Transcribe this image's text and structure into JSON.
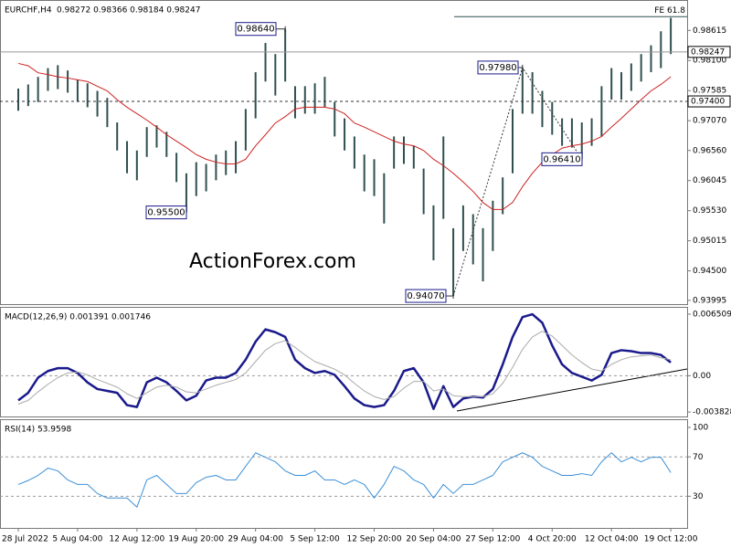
{
  "chart_data": [
    {
      "type": "ohlc",
      "title": "EURCHF,H4",
      "ohlc_text": "0.98272 0.98366 0.98184 0.98247",
      "watermark": "ActionForex.com",
      "color": "#2f4f4f",
      "high": [
        0.9762,
        0.9769,
        0.9782,
        0.9797,
        0.9802,
        0.9793,
        0.9777,
        0.9771,
        0.9758,
        0.9746,
        0.9704,
        0.9672,
        0.9656,
        0.9696,
        0.9699,
        0.9688,
        0.9652,
        0.9617,
        0.9636,
        0.9633,
        0.9649,
        0.9656,
        0.9672,
        0.9727,
        0.979,
        0.984,
        0.9821,
        0.9864,
        0.9766,
        0.9766,
        0.9771,
        0.9782,
        0.9739,
        0.9711,
        0.968,
        0.9649,
        0.9641,
        0.9617,
        0.968,
        0.968,
        0.9664,
        0.9625,
        0.9562,
        0.968,
        0.9523,
        0.9562,
        0.9547,
        0.9523,
        0.957,
        0.961,
        0.9727,
        0.9798,
        0.979,
        0.9758,
        0.9739,
        0.9711,
        0.9711,
        0.9704,
        0.9711,
        0.9766,
        0.9797,
        0.979,
        0.9805,
        0.9821,
        0.9836,
        0.986,
        0.9883
      ],
      "low": [
        0.9724,
        0.9732,
        0.9739,
        0.9758,
        0.9761,
        0.9755,
        0.9739,
        0.973,
        0.9714,
        0.9696,
        0.9656,
        0.9617,
        0.9605,
        0.9645,
        0.9661,
        0.9645,
        0.9602,
        0.955,
        0.9578,
        0.9586,
        0.9605,
        0.9614,
        0.9617,
        0.9656,
        0.9711,
        0.9774,
        0.975,
        0.9774,
        0.9711,
        0.9719,
        0.9719,
        0.973,
        0.968,
        0.9656,
        0.9625,
        0.9586,
        0.9578,
        0.9531,
        0.9625,
        0.9633,
        0.9625,
        0.9547,
        0.9468,
        0.9539,
        0.9407,
        0.9484,
        0.9461,
        0.9432,
        0.9484,
        0.9547,
        0.9617,
        0.9719,
        0.9719,
        0.9696,
        0.9683,
        0.9664,
        0.9661,
        0.9641,
        0.9664,
        0.968,
        0.9743,
        0.9743,
        0.9758,
        0.9774,
        0.979,
        0.9797,
        0.9821
      ],
      "ma": {
        "color": "#cc2222",
        "values": [
          0.9805,
          0.9801,
          0.9789,
          0.9786,
          0.9782,
          0.978,
          0.9777,
          0.9774,
          0.9766,
          0.9758,
          0.9743,
          0.973,
          0.9719,
          0.9708,
          0.9696,
          0.9683,
          0.9672,
          0.9661,
          0.9649,
          0.9641,
          0.9636,
          0.9633,
          0.9633,
          0.9641,
          0.9664,
          0.9683,
          0.9703,
          0.9714,
          0.9727,
          0.973,
          0.973,
          0.973,
          0.9727,
          0.9719,
          0.9703,
          0.9696,
          0.9688,
          0.968,
          0.9672,
          0.9667,
          0.9664,
          0.9656,
          0.9641,
          0.963,
          0.9617,
          0.9602,
          0.9586,
          0.9567,
          0.9555,
          0.9555,
          0.9567,
          0.9594,
          0.9617,
          0.9636,
          0.9649,
          0.966,
          0.9664,
          0.9667,
          0.9672,
          0.968,
          0.9696,
          0.9711,
          0.9727,
          0.9743,
          0.9758,
          0.9769,
          0.9782
        ]
      },
      "ylim": [
        0.9393,
        0.9912
      ],
      "yticks": [
        0.98615,
        {
          "value": 0.981,
          "label": "0.98100"
        },
        0.97585,
        {
          "value": 0.9707,
          "label": "0.97070"
        },
        {
          "value": 0.9656,
          "label": "0.96560"
        },
        0.96045,
        {
          "value": 0.9553,
          "label": "0.95530"
        },
        0.95015,
        {
          "value": 0.945,
          "label": "0.94500"
        },
        0.93995
      ],
      "levels": [
        {
          "value": 0.98247,
          "style": "solid"
        },
        {
          "value": 0.974,
          "label": "0.97400",
          "style": "dashed"
        }
      ],
      "fe": {
        "label": "FE 61.8",
        "value": 0.9885
      },
      "annotations": [
        {
          "value": 0.9864,
          "label": "0.98640"
        },
        {
          "value": 0.955,
          "label": "0.95500"
        },
        {
          "value": 0.9407,
          "label": "0.94070"
        },
        {
          "value": 0.9798,
          "label": "0.97980"
        },
        {
          "value": 0.9641,
          "label": "0.96410"
        }
      ]
    },
    {
      "type": "line",
      "title": "MACD(12,26,9) 0.001391 0.001746",
      "series": [
        {
          "color": "#1a1a8c",
          "width": 2.5,
          "values": [
            -0.0026,
            -0.0018,
            -0.0002,
            0.0005,
            0.0008,
            0.0008,
            0.0003,
            -0.0007,
            -0.0014,
            -0.0016,
            -0.0018,
            -0.0031,
            -0.0033,
            -0.0007,
            -0.0002,
            -0.0007,
            -0.0016,
            -0.0026,
            -0.0021,
            -0.0005,
            -0.0002,
            -0.0002,
            0.0003,
            0.0017,
            0.0036,
            0.0049,
            0.0046,
            0.0041,
            0.0017,
            0.0008,
            0.0003,
            0.0005,
            0.0001,
            -0.0011,
            -0.0024,
            -0.0031,
            -0.0033,
            -0.0031,
            -0.0016,
            0.0005,
            0.0008,
            -0.0007,
            -0.0035,
            -0.0011,
            -0.0033,
            -0.0024,
            -0.0022,
            -0.0023,
            -0.0014,
            0.0012,
            0.0041,
            0.0062,
            0.0065,
            0.0056,
            0.0032,
            0.0012,
            0.0003,
            -0.0001,
            -0.0005,
            0.0001,
            0.0024,
            0.0027,
            0.0026,
            0.0024,
            0.0024,
            0.0022,
            0.0014
          ]
        },
        {
          "color": "#aaaaaa",
          "width": 1,
          "values": [
            -0.003,
            -0.0026,
            -0.0017,
            -0.0009,
            -0.0002,
            0.0003,
            0.0004,
            0.0001,
            -0.0004,
            -0.0008,
            -0.0012,
            -0.0019,
            -0.0024,
            -0.0018,
            -0.0012,
            -0.001,
            -0.0012,
            -0.0017,
            -0.0018,
            -0.0014,
            -0.001,
            -0.0007,
            -0.0004,
            0.0003,
            0.0015,
            0.0027,
            0.0034,
            0.0037,
            0.003,
            0.0022,
            0.0015,
            0.0011,
            0.0007,
            0.0001,
            -0.0008,
            -0.0016,
            -0.0022,
            -0.0025,
            -0.0022,
            -0.0013,
            -0.0006,
            -0.0006,
            -0.0016,
            -0.0014,
            -0.0021,
            -0.0022,
            -0.0022,
            -0.0022,
            -0.0019,
            -0.0008,
            0.0009,
            0.0028,
            0.0041,
            0.0047,
            0.0042,
            0.0032,
            0.0022,
            0.0014,
            0.0007,
            0.0005,
            0.0012,
            0.0017,
            0.002,
            0.0021,
            0.0022,
            0.0019,
            0.0017
          ]
        }
      ],
      "ylim": [
        -0.0043,
        0.00718
      ],
      "yticks": [
        0.006509,
        {
          "value": 0,
          "label": "0.00"
        },
        -0.003828
      ],
      "ref_lines": [
        0
      ]
    },
    {
      "type": "line",
      "title": "RSI(14) 53.9598",
      "series": [
        {
          "color": "#3a8fd6",
          "width": 1,
          "values": [
            42.0,
            46.0,
            51.2,
            58.6,
            55.8,
            46.6,
            42.0,
            42.0,
            32.8,
            28.2,
            28.2,
            28.2,
            18.9,
            46.6,
            51.2,
            42.0,
            32.8,
            32.8,
            43.8,
            49.3,
            51.2,
            46.6,
            46.6,
            60.4,
            74.2,
            69.6,
            65.0,
            55.8,
            51.2,
            51.2,
            55.8,
            46.6,
            46.6,
            42.0,
            46.6,
            42.0,
            28.2,
            42.0,
            60.4,
            55.8,
            46.6,
            42.0,
            28.2,
            42.0,
            32.8,
            42.0,
            42.0,
            46.6,
            51.2,
            65.0,
            69.6,
            74.2,
            69.6,
            60.4,
            55.8,
            51.2,
            51.2,
            53.0,
            51.2,
            65.0,
            74.2,
            65.0,
            69.6,
            65.0,
            69.6,
            69.6,
            54.0
          ]
        }
      ],
      "ylim": [
        -2.2,
        107.4
      ],
      "yticks": [
        100,
        70,
        30
      ],
      "ref_lines": [
        70,
        30
      ],
      "categories": [
        "28 Jul 2022",
        null,
        null,
        null,
        null,
        null,
        "5 Aug 04:00",
        null,
        null,
        null,
        null,
        null,
        "12 Aug 12:00",
        null,
        null,
        null,
        null,
        null,
        "19 Aug 20:00",
        null,
        null,
        null,
        null,
        null,
        "29 Aug 04:00",
        null,
        null,
        null,
        null,
        null,
        "5 Sep 12:00",
        null,
        null,
        null,
        null,
        null,
        "12 Sep 20:00",
        null,
        null,
        null,
        null,
        null,
        "20 Sep 04:00",
        null,
        null,
        null,
        null,
        null,
        "27 Sep 12:00",
        null,
        null,
        null,
        null,
        null,
        "4 Oct 20:00",
        null,
        null,
        null,
        null,
        null,
        "12 Oct 04:00",
        null,
        null,
        null,
        null,
        null,
        "19 Oct 12:00"
      ]
    }
  ]
}
